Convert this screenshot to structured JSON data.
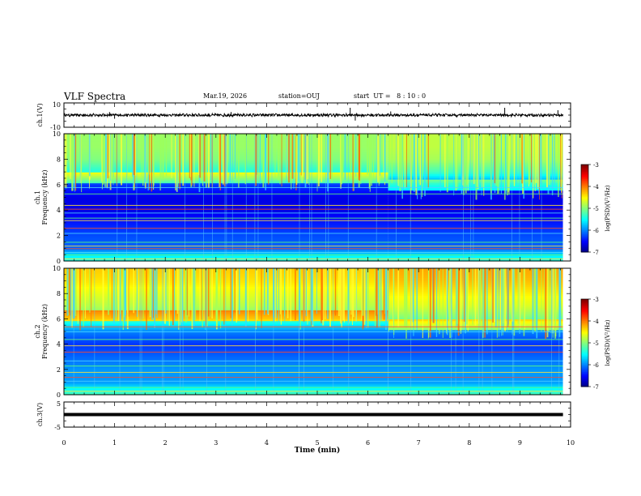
{
  "header": {
    "title": "VLF Spectra",
    "date": "Mar.19, 2026",
    "station": "station=OUJ",
    "start": "start  UT =   8 : 10 : 0"
  },
  "chart_data": [
    {
      "type": "line",
      "name": "ch1-waveform",
      "ylabel": "ch.1(V)",
      "y_ticks": [
        "10",
        "-10"
      ],
      "ylim": [
        -10,
        10
      ],
      "xlim": [
        0,
        10
      ],
      "baseline": 0,
      "noise_amplitude": 1,
      "spikes": [
        {
          "x": 0.9,
          "y": 2.5
        },
        {
          "x": 1.0,
          "y": -3.0
        },
        {
          "x": 3.3,
          "y": 2.5
        },
        {
          "x": 5.65,
          "y": 6.0
        },
        {
          "x": 5.75,
          "y": -4.5
        },
        {
          "x": 6.45,
          "y": 3.0
        },
        {
          "x": 8.7,
          "y": 6.0
        },
        {
          "x": 9.75,
          "y": 4.0
        }
      ]
    },
    {
      "type": "heatmap",
      "name": "ch1-spectrogram",
      "ylabel": "ch.1\nFrequency  (kHz)",
      "y_ticks": [
        0,
        2,
        4,
        6,
        8,
        10
      ],
      "ylim": [
        0,
        10
      ],
      "xlim": [
        0,
        10
      ],
      "data_end": 9.85,
      "colorbar": {
        "label": "log(PSD)(V²/Hz)",
        "ticks": [
          "-3",
          "-4",
          "-5",
          "-6",
          "-7"
        ],
        "range": [
          -7,
          -3
        ]
      },
      "profile": [
        {
          "f": 0.0,
          "psd": -5.3
        },
        {
          "f": 0.5,
          "psd": -5.6
        },
        {
          "f": 1.0,
          "psd": -6.1
        },
        {
          "f": 2.0,
          "psd": -6.2
        },
        {
          "f": 3.0,
          "psd": -6.4
        },
        {
          "f": 4.0,
          "psd": -6.6
        },
        {
          "f": 5.0,
          "psd": -6.6
        },
        {
          "f": 6.0,
          "psd": -6.3
        },
        {
          "f": 7.0,
          "psd": -5.4
        },
        {
          "f": 8.0,
          "psd": -5.0
        },
        {
          "f": 9.0,
          "psd": -4.9
        },
        {
          "f": 10.0,
          "psd": -4.9
        }
      ],
      "hiss_edge_khz": {
        "before_6min": 6.6,
        "after_6min": 6.0
      },
      "lines_khz": [
        0.2,
        0.5,
        0.7,
        1.0,
        1.2,
        1.5,
        2.2,
        2.6,
        3.2,
        3.4,
        3.8,
        4.1,
        4.4,
        5.3,
        5.8
      ]
    },
    {
      "type": "heatmap",
      "name": "ch2-spectrogram",
      "ylabel": "ch.2\nFrequency  (kHz)",
      "y_ticks": [
        0,
        2,
        4,
        6,
        8,
        10
      ],
      "ylim": [
        0,
        10
      ],
      "xlim": [
        0,
        10
      ],
      "data_end": 9.85,
      "colorbar": {
        "label": "log(PSD)(V²/Hz)",
        "ticks": [
          "-3",
          "-4",
          "-5",
          "-6",
          "-7"
        ],
        "range": [
          -7,
          -3
        ]
      },
      "profile": [
        {
          "f": 0.0,
          "psd": -5.2
        },
        {
          "f": 0.5,
          "psd": -5.5
        },
        {
          "f": 1.0,
          "psd": -5.9
        },
        {
          "f": 2.0,
          "psd": -5.9
        },
        {
          "f": 3.0,
          "psd": -6.1
        },
        {
          "f": 4.0,
          "psd": -6.3
        },
        {
          "f": 5.0,
          "psd": -6.0
        },
        {
          "f": 6.0,
          "psd": -5.2
        },
        {
          "f": 7.0,
          "psd": -4.8
        },
        {
          "f": 8.0,
          "psd": -4.6
        },
        {
          "f": 9.0,
          "psd": -4.4
        },
        {
          "f": 10.0,
          "psd": -4.3
        }
      ],
      "hiss_edge_khz": {
        "before_6min": 6.3,
        "after_6min": 5.6
      },
      "lines_khz": [
        0.3,
        0.6,
        1.1,
        1.4,
        1.8,
        2.3,
        2.7,
        3.4,
        3.9,
        4.4,
        5.0,
        5.4
      ]
    },
    {
      "type": "line",
      "name": "ch3-waveform",
      "ylabel": "ch.3(V)",
      "y_ticks": [
        "5",
        "-5"
      ],
      "ylim": [
        -5,
        5
      ],
      "xlim": [
        0,
        10
      ],
      "baseline": 0,
      "noise_amplitude": 0.3,
      "spikes": []
    }
  ],
  "x_axis": {
    "label": "Time  (min)",
    "ticks": [
      "0",
      "1",
      "2",
      "3",
      "4",
      "5",
      "6",
      "7",
      "8",
      "9",
      "10"
    ]
  }
}
